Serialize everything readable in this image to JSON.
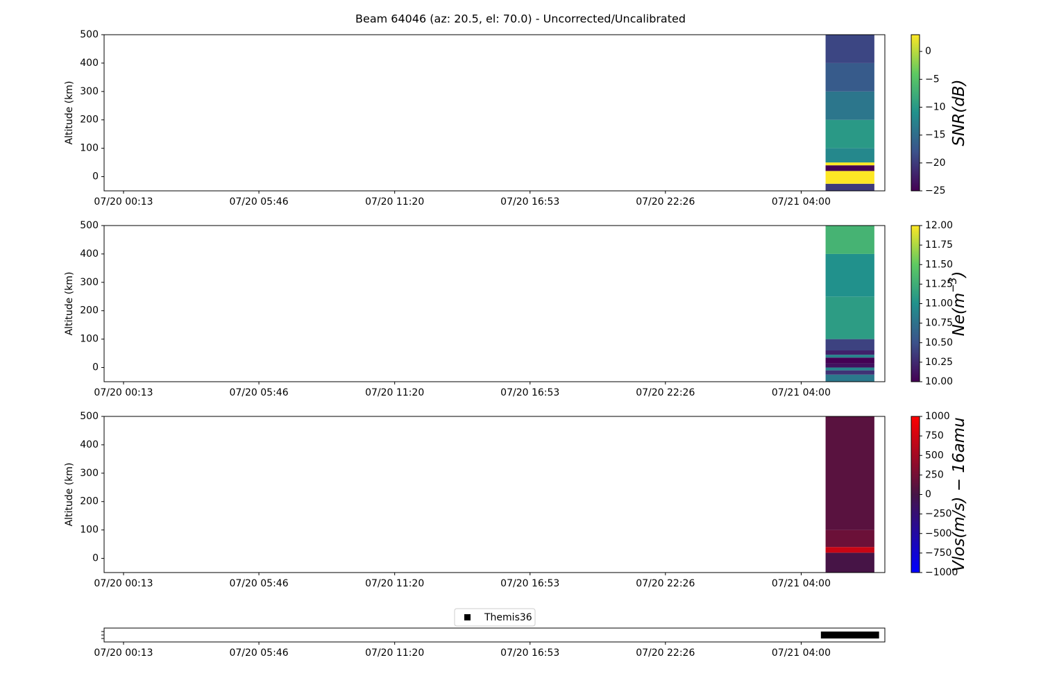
{
  "title": "Beam 64046 (az: 20.5, el: 70.0) - Uncorrected/Uncalibrated",
  "chart_data": [
    {
      "type": "heatmap",
      "ylabel": "Altitude (km)",
      "xlim": [
        -0.58,
        31.43
      ],
      "xticks": [
        {
          "value": 0.2167,
          "label": "07/20 00:13"
        },
        {
          "value": 5.7667,
          "label": "07/20 05:46"
        },
        {
          "value": 11.3333,
          "label": "07/20 11:20"
        },
        {
          "value": 16.8833,
          "label": "07/20 16:53"
        },
        {
          "value": 22.4333,
          "label": "07/20 22:26"
        },
        {
          "value": 28.0,
          "label": "07/21 04:00"
        }
      ],
      "ylim": [
        -50,
        500
      ],
      "yticks": [
        0,
        100,
        200,
        300,
        400,
        500
      ],
      "x_edges": [
        29.0,
        31.0
      ],
      "y_edges": [
        -50,
        -25,
        20,
        40,
        50,
        100,
        200,
        300,
        400,
        500
      ],
      "values": [
        -20,
        3,
        -25,
        3,
        -12,
        -10,
        -14,
        -17,
        -19
      ],
      "colorbar": {
        "label": [
          "SNR(dB)"
        ],
        "clim": [
          -25,
          3
        ],
        "cmap": [
          "#440154",
          "#3b528b",
          "#21918c",
          "#5ec962",
          "#fde725"
        ],
        "ticks": [
          {
            "value": -25,
            "label": "−25"
          },
          {
            "value": -20,
            "label": "−20"
          },
          {
            "value": -15,
            "label": "−15"
          },
          {
            "value": -10,
            "label": "−10"
          },
          {
            "value": -5,
            "label": "−5"
          },
          0
        ]
      }
    },
    {
      "type": "heatmap",
      "ylabel": "Altitude (km)",
      "xlim": [
        -0.58,
        31.43
      ],
      "xticks": [
        {
          "value": 0.2167,
          "label": "07/20 00:13"
        },
        {
          "value": 5.7667,
          "label": "07/20 05:46"
        },
        {
          "value": 11.3333,
          "label": "07/20 11:20"
        },
        {
          "value": 16.8833,
          "label": "07/20 16:53"
        },
        {
          "value": 22.4333,
          "label": "07/20 22:26"
        },
        {
          "value": 28.0,
          "label": "07/21 04:00"
        }
      ],
      "ylim": [
        -50,
        500
      ],
      "yticks": [
        0,
        100,
        200,
        300,
        400,
        500
      ],
      "x_edges": [
        29.0,
        31.0
      ],
      "y_edges": [
        -50,
        -25,
        -10,
        0,
        15,
        35,
        45,
        60,
        100,
        250,
        400,
        500
      ],
      "values": [
        10.8,
        10.3,
        10.9,
        10.1,
        10.0,
        10.9,
        10.2,
        10.4,
        11.1,
        11.0,
        11.3
      ],
      "colorbar": {
        "label": [
          "Ne(m",
          "−3",
          ")"
        ],
        "clim": [
          10,
          12
        ],
        "cmap": [
          "#440154",
          "#3b528b",
          "#21918c",
          "#5ec962",
          "#fde725"
        ],
        "ticks": [
          {
            "value": 10,
            "label": "10.00"
          },
          {
            "value": 10.25,
            "label": "10.25"
          },
          {
            "value": 10.5,
            "label": "10.50"
          },
          {
            "value": 10.75,
            "label": "10.75"
          },
          {
            "value": 11,
            "label": "11.00"
          },
          {
            "value": 11.25,
            "label": "11.25"
          },
          {
            "value": 11.5,
            "label": "11.50"
          },
          {
            "value": 11.75,
            "label": "11.75"
          },
          {
            "value": 12,
            "label": "12.00"
          }
        ]
      }
    },
    {
      "type": "heatmap",
      "ylabel": "Altitude (km)",
      "xlim": [
        -0.58,
        31.43
      ],
      "xticks": [
        {
          "value": 0.2167,
          "label": "07/20 00:13"
        },
        {
          "value": 5.7667,
          "label": "07/20 05:46"
        },
        {
          "value": 11.3333,
          "label": "07/20 11:20"
        },
        {
          "value": 16.8833,
          "label": "07/20 16:53"
        },
        {
          "value": 22.4333,
          "label": "07/20 22:26"
        },
        {
          "value": 28.0,
          "label": "07/21 04:00"
        }
      ],
      "ylim": [
        -50,
        500
      ],
      "yticks": [
        0,
        100,
        200,
        300,
        400,
        500
      ],
      "x_edges": [
        29.0,
        31.0
      ],
      "y_edges": [
        -50,
        20,
        40,
        100,
        500
      ],
      "values": [
        0,
        700,
        200,
        100
      ],
      "colorbar": {
        "label": [
          "Vlos(m/s) − 16amu"
        ],
        "clim": [
          -1000,
          1000
        ],
        "cmap": [
          "#0000ff",
          "#461446",
          "#ff0000"
        ],
        "ticks": [
          {
            "value": -1000,
            "label": "−1000"
          },
          {
            "value": -750,
            "label": "−750"
          },
          {
            "value": -500,
            "label": "−500"
          },
          {
            "value": -250,
            "label": "−250"
          },
          0,
          250,
          500,
          750,
          1000
        ]
      }
    },
    {
      "type": "line",
      "xlim": [
        -0.58,
        31.43
      ],
      "xticks": [
        {
          "value": 0.2167,
          "label": "07/20 00:13"
        },
        {
          "value": 5.7667,
          "label": "07/20 05:46"
        },
        {
          "value": 11.3333,
          "label": "07/20 11:20"
        },
        {
          "value": 16.8833,
          "label": "07/20 16:53"
        },
        {
          "value": 22.4333,
          "label": "07/20 22:26"
        },
        {
          "value": 28.0,
          "label": "07/21 04:00"
        }
      ],
      "ylim": [
        -1,
        1
      ],
      "legend": "upper center",
      "series": [
        {
          "name": "Themis36",
          "color": "#000000",
          "x": [
            28.95,
            31.05
          ],
          "values": [
            0,
            0
          ]
        }
      ]
    }
  ]
}
